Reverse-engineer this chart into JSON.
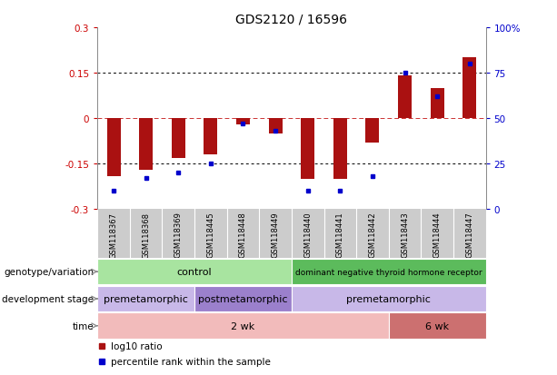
{
  "title": "GDS2120 / 16596",
  "samples": [
    "GSM118367",
    "GSM118368",
    "GSM118369",
    "GSM118445",
    "GSM118448",
    "GSM118449",
    "GSM118440",
    "GSM118441",
    "GSM118442",
    "GSM118443",
    "GSM118444",
    "GSM118447"
  ],
  "log10_ratio": [
    -0.19,
    -0.17,
    -0.13,
    -0.12,
    -0.02,
    -0.05,
    -0.2,
    -0.2,
    -0.08,
    0.14,
    0.1,
    0.2
  ],
  "percentile_rank": [
    10,
    17,
    20,
    25,
    47,
    43,
    10,
    10,
    18,
    75,
    62,
    80
  ],
  "bar_color": "#AA1111",
  "dot_color": "#0000CC",
  "ylim_left": [
    -0.3,
    0.3
  ],
  "ylim_right": [
    0,
    100
  ],
  "yticks_left": [
    -0.3,
    -0.15,
    0,
    0.15,
    0.3
  ],
  "yticks_right": [
    0,
    25,
    50,
    75,
    100
  ],
  "ytick_labels_right": [
    "0",
    "25",
    "50",
    "75",
    "100%"
  ],
  "ytick_labels_left": [
    "-0.3",
    "-0.15",
    "0",
    "0.15",
    "0.3"
  ],
  "annotation_rows": [
    {
      "label": "genotype/variation",
      "segments": [
        {
          "text": "control",
          "span": [
            0,
            6
          ],
          "color": "#A8E4A0"
        },
        {
          "text": "dominant negative thyroid hormone receptor",
          "span": [
            6,
            12
          ],
          "color": "#5CBB5C"
        }
      ]
    },
    {
      "label": "development stage",
      "segments": [
        {
          "text": "premetamorphic",
          "span": [
            0,
            3
          ],
          "color": "#C8B8E8"
        },
        {
          "text": "postmetamorphic",
          "span": [
            3,
            6
          ],
          "color": "#9B80CC"
        },
        {
          "text": "premetamorphic",
          "span": [
            6,
            12
          ],
          "color": "#C8B8E8"
        }
      ]
    },
    {
      "label": "time",
      "segments": [
        {
          "text": "2 wk",
          "span": [
            0,
            9
          ],
          "color": "#F2BBBB"
        },
        {
          "text": "6 wk",
          "span": [
            9,
            12
          ],
          "color": "#CC7070"
        }
      ]
    }
  ],
  "legend": [
    {
      "color": "#AA1111",
      "label": "log10 ratio"
    },
    {
      "color": "#0000CC",
      "label": "percentile rank within the sample"
    }
  ],
  "background_color": "#FFFFFF",
  "title_fontsize": 10,
  "tick_fontsize": 7.5,
  "annotation_fontsize": 8,
  "label_fontsize": 7.5,
  "sample_fontsize": 6.0,
  "legend_fontsize": 7.5
}
